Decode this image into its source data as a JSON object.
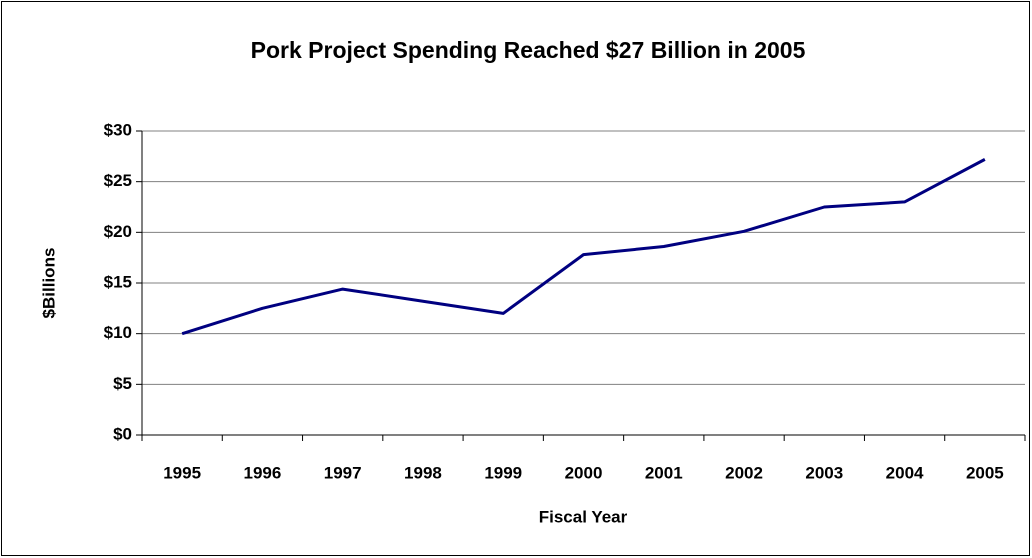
{
  "chart_data": {
    "type": "line",
    "title": "Pork Project Spending Reached $27 Billion in 2005",
    "x_label": "Fiscal Year",
    "y_label": "$Billions",
    "categories": [
      "1995",
      "1996",
      "1997",
      "1998",
      "1999",
      "2000",
      "2001",
      "2002",
      "2003",
      "2004",
      "2005"
    ],
    "series": [
      {
        "name": "Pork Project Spending",
        "color": "#000080",
        "values": [
          10.0,
          12.5,
          14.4,
          13.2,
          12.0,
          17.8,
          18.6,
          20.1,
          22.5,
          23.0,
          27.2
        ]
      }
    ],
    "ylim": [
      0,
      30
    ],
    "yticks": [
      {
        "value": 0,
        "label": "$0"
      },
      {
        "value": 5,
        "label": "$5"
      },
      {
        "value": 10,
        "label": "$10"
      },
      {
        "value": 15,
        "label": "$15"
      },
      {
        "value": 20,
        "label": "$20"
      },
      {
        "value": 25,
        "label": "$25"
      },
      {
        "value": 30,
        "label": "$30"
      }
    ],
    "grid": true
  }
}
